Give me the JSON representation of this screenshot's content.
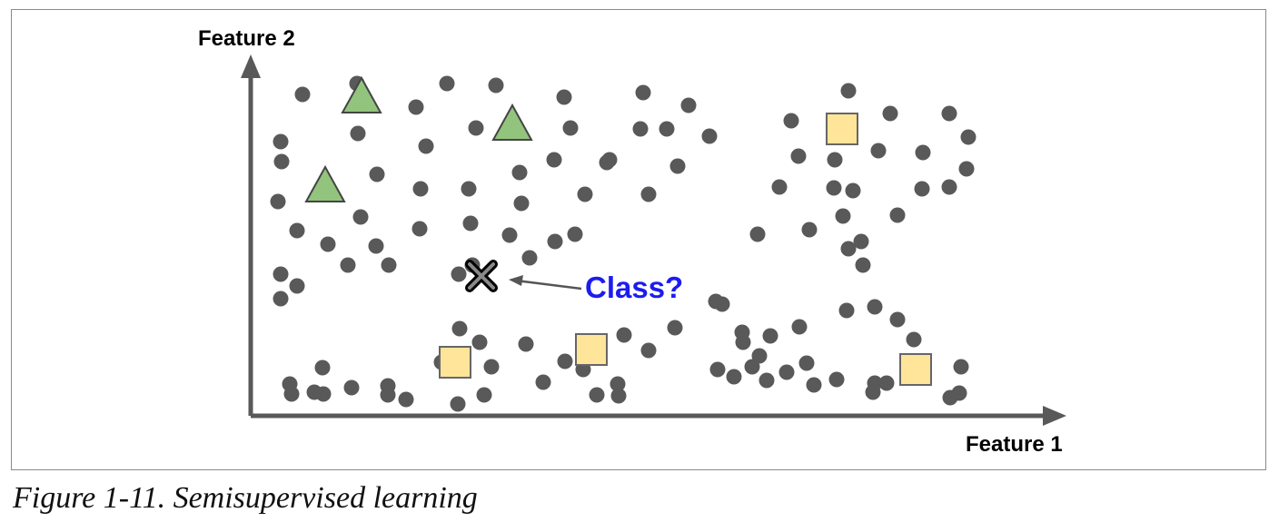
{
  "caption": "Figure 1-11. Semisupervised learning",
  "chart_data": {
    "type": "scatter",
    "xlabel": "Feature 1",
    "ylabel": "Feature 2",
    "xlim": [
      0,
      880
    ],
    "ylim": [
      0,
      380
    ],
    "grid": false,
    "colors": {
      "unlabeled": "#595959",
      "triangle": "#93c47d",
      "square": "#ffe599",
      "query": "#000000",
      "query_label": "#1c1cf0",
      "axis": "#595959"
    },
    "series": [
      {
        "marker": "circle",
        "values": [
          [
            57,
            354
          ],
          [
            117,
            366
          ],
          [
            270,
            364
          ],
          [
            216,
            366
          ],
          [
            182,
            340
          ],
          [
            345,
            351
          ],
          [
            432,
            356
          ],
          [
            482,
            342
          ],
          [
            595,
            325
          ],
          [
            658,
            358
          ],
          [
            704,
            333
          ],
          [
            769,
            333
          ],
          [
            790,
            307
          ],
          [
            33,
            302
          ],
          [
            34,
            280
          ],
          [
            118,
            311
          ],
          [
            193,
            297
          ],
          [
            248,
            317
          ],
          [
            352,
            317
          ],
          [
            334,
            282
          ],
          [
            395,
            282
          ],
          [
            458,
            316
          ],
          [
            429,
            316
          ],
          [
            505,
            308
          ],
          [
            691,
            292
          ],
          [
            740,
            290
          ],
          [
            603,
            286
          ],
          [
            663,
            248
          ],
          [
            643,
            282
          ],
          [
            739,
            250
          ],
          [
            788,
            272
          ],
          [
            139,
            266
          ],
          [
            30,
            236
          ],
          [
            187,
            250
          ],
          [
            240,
            250
          ],
          [
            296,
            268
          ],
          [
            392,
            279
          ],
          [
            298,
            234
          ],
          [
            368,
            244
          ],
          [
            438,
            244
          ],
          [
            470,
            275
          ],
          [
            582,
            252
          ],
          [
            642,
            251
          ],
          [
            769,
            252
          ],
          [
            51,
            204
          ],
          [
            85,
            189
          ],
          [
            121,
            219
          ],
          [
            138,
            187
          ],
          [
            152,
            166
          ],
          [
            186,
            206
          ],
          [
            242,
            212
          ],
          [
            285,
            199
          ],
          [
            244,
            166
          ],
          [
            307,
            174
          ],
          [
            335,
            192
          ],
          [
            357,
            200
          ],
          [
            558,
            200
          ],
          [
            615,
            205
          ],
          [
            652,
            220
          ],
          [
            672,
            192
          ],
          [
            712,
            221
          ],
          [
            674,
            166
          ],
          [
            33,
            156
          ],
          [
            33,
            129
          ],
          [
            51,
            143
          ],
          [
            107,
            166
          ],
          [
            229,
            156
          ],
          [
            230,
            96
          ],
          [
            252,
            81
          ],
          [
            303,
            79
          ],
          [
            265,
            54
          ],
          [
            346,
            60
          ],
          [
            210,
            59
          ],
          [
            70,
            26
          ],
          [
            79,
            53
          ],
          [
            111,
            31
          ],
          [
            151,
            33
          ],
          [
            171,
            18
          ],
          [
            257,
            23
          ],
          [
            322,
            37
          ],
          [
            381,
            23
          ],
          [
            411,
            89
          ],
          [
            438,
            72
          ],
          [
            467,
            97
          ],
          [
            519,
            123
          ],
          [
            541,
            92
          ],
          [
            572,
            88
          ],
          [
            590,
            48
          ],
          [
            604,
            98
          ],
          [
            656,
            116
          ],
          [
            687,
            120
          ],
          [
            712,
            106
          ],
          [
            730,
            84
          ],
          [
            658,
            184
          ],
          [
            512,
            126
          ],
          [
            542,
            81
          ],
          [
            560,
            66
          ],
          [
            568,
            39
          ],
          [
            43,
            35
          ],
          [
            80,
            24
          ],
          [
            45,
            24
          ],
          [
            151,
            23
          ],
          [
            228,
            13
          ],
          [
            366,
            51
          ],
          [
            404,
            35
          ],
          [
            514,
            51
          ],
          [
            552,
            54
          ],
          [
            532,
            43
          ],
          [
            612,
            58
          ],
          [
            645,
            40
          ],
          [
            687,
            36
          ],
          [
            782,
            54
          ],
          [
            780,
            25
          ],
          [
            770,
            20
          ],
          [
            700,
            36
          ],
          [
            685,
            26
          ],
          [
            620,
            34
          ],
          [
            405,
            22
          ]
        ]
      },
      {
        "marker": "triangle",
        "values": [
          [
            122,
            352
          ],
          [
            288,
            322
          ],
          [
            82,
            254
          ]
        ]
      },
      {
        "marker": "square",
        "values": [
          [
            651,
            316
          ],
          [
            225,
            59
          ],
          [
            375,
            73
          ],
          [
            732,
            51
          ]
        ]
      }
    ],
    "annotations": [
      {
        "marker": "x",
        "x": 254,
        "y": 154,
        "text": "Class?"
      }
    ]
  }
}
